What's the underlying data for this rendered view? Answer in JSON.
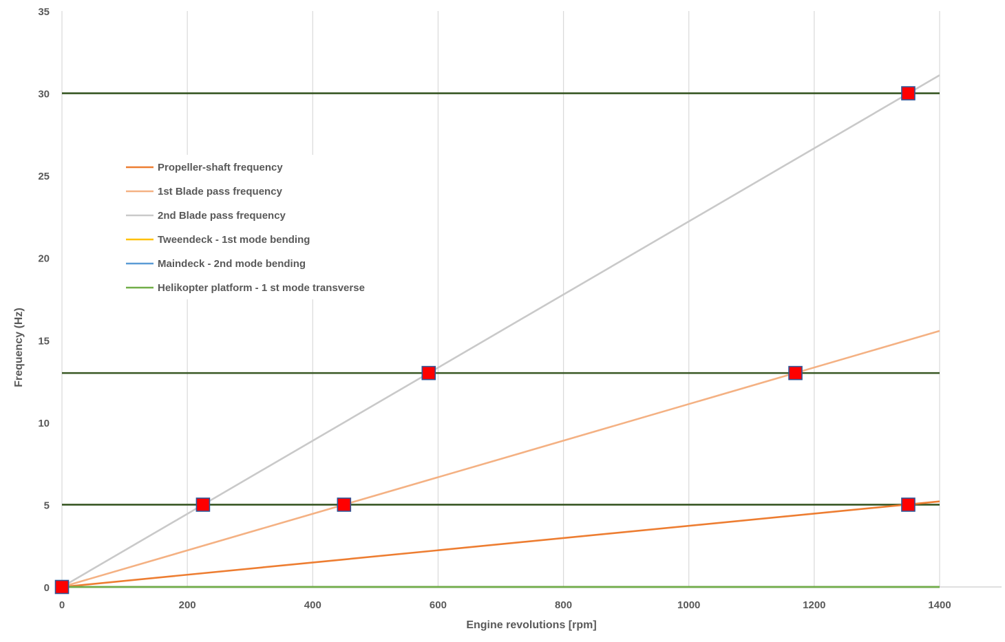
{
  "chart_data": {
    "type": "line",
    "xlabel": "Engine revolutions [rpm]",
    "ylabel": "Frequency (Hz)",
    "xlim": [
      0,
      1400
    ],
    "ylim": [
      0,
      35
    ],
    "xticks": [
      0,
      200,
      400,
      600,
      800,
      1000,
      1200,
      1400
    ],
    "yticks": [
      0,
      5,
      10,
      15,
      20,
      25,
      30,
      35
    ],
    "x_grid": true,
    "y_grid": false,
    "legend_position": "upper-left",
    "series": [
      {
        "name": "Propeller-shaft frequency",
        "color": "#ED7D31",
        "points": [
          [
            0,
            0
          ],
          [
            1400,
            5.2
          ]
        ]
      },
      {
        "name": "1st Blade pass frequency",
        "color": "#F4B183",
        "points": [
          [
            0,
            0
          ],
          [
            1400,
            15.56
          ]
        ]
      },
      {
        "name": "2nd Blade pass frequency",
        "color": "#C9C9C9",
        "points": [
          [
            0,
            0
          ],
          [
            1400,
            31.1
          ]
        ]
      },
      {
        "name": "Tweendeck  - 1st mode bending",
        "color": "#FFC000",
        "points": [
          [
            0,
            0
          ],
          [
            1400,
            0
          ]
        ]
      },
      {
        "name": "Maindeck - 2nd mode bending",
        "color": "#5B9BD5",
        "points": [
          [
            0,
            0
          ],
          [
            1400,
            0
          ]
        ]
      },
      {
        "name": "Helikopter platform - 1 st mode transverse",
        "color": "#70AD47",
        "points": [
          [
            0,
            0
          ],
          [
            1400,
            0
          ]
        ]
      }
    ],
    "horizontal_lines": [
      {
        "y": 30,
        "x": [
          0,
          1400
        ],
        "color": "#375623"
      },
      {
        "y": 13,
        "x": [
          0,
          1400
        ],
        "color": "#375623"
      },
      {
        "y": 5,
        "x": [
          0,
          1400
        ],
        "color": "#375623"
      },
      {
        "y": 0,
        "x": [
          0,
          1400
        ],
        "color": "#375623"
      }
    ],
    "markers": [
      {
        "x": 0,
        "y": 0
      },
      {
        "x": 225,
        "y": 5
      },
      {
        "x": 450,
        "y": 5
      },
      {
        "x": 585,
        "y": 13
      },
      {
        "x": 1170,
        "y": 13
      },
      {
        "x": 1350,
        "y": 5
      },
      {
        "x": 1350,
        "y": 30
      }
    ],
    "marker_style": {
      "shape": "square",
      "fill": "#FF0000",
      "stroke": "#2F5597"
    }
  }
}
